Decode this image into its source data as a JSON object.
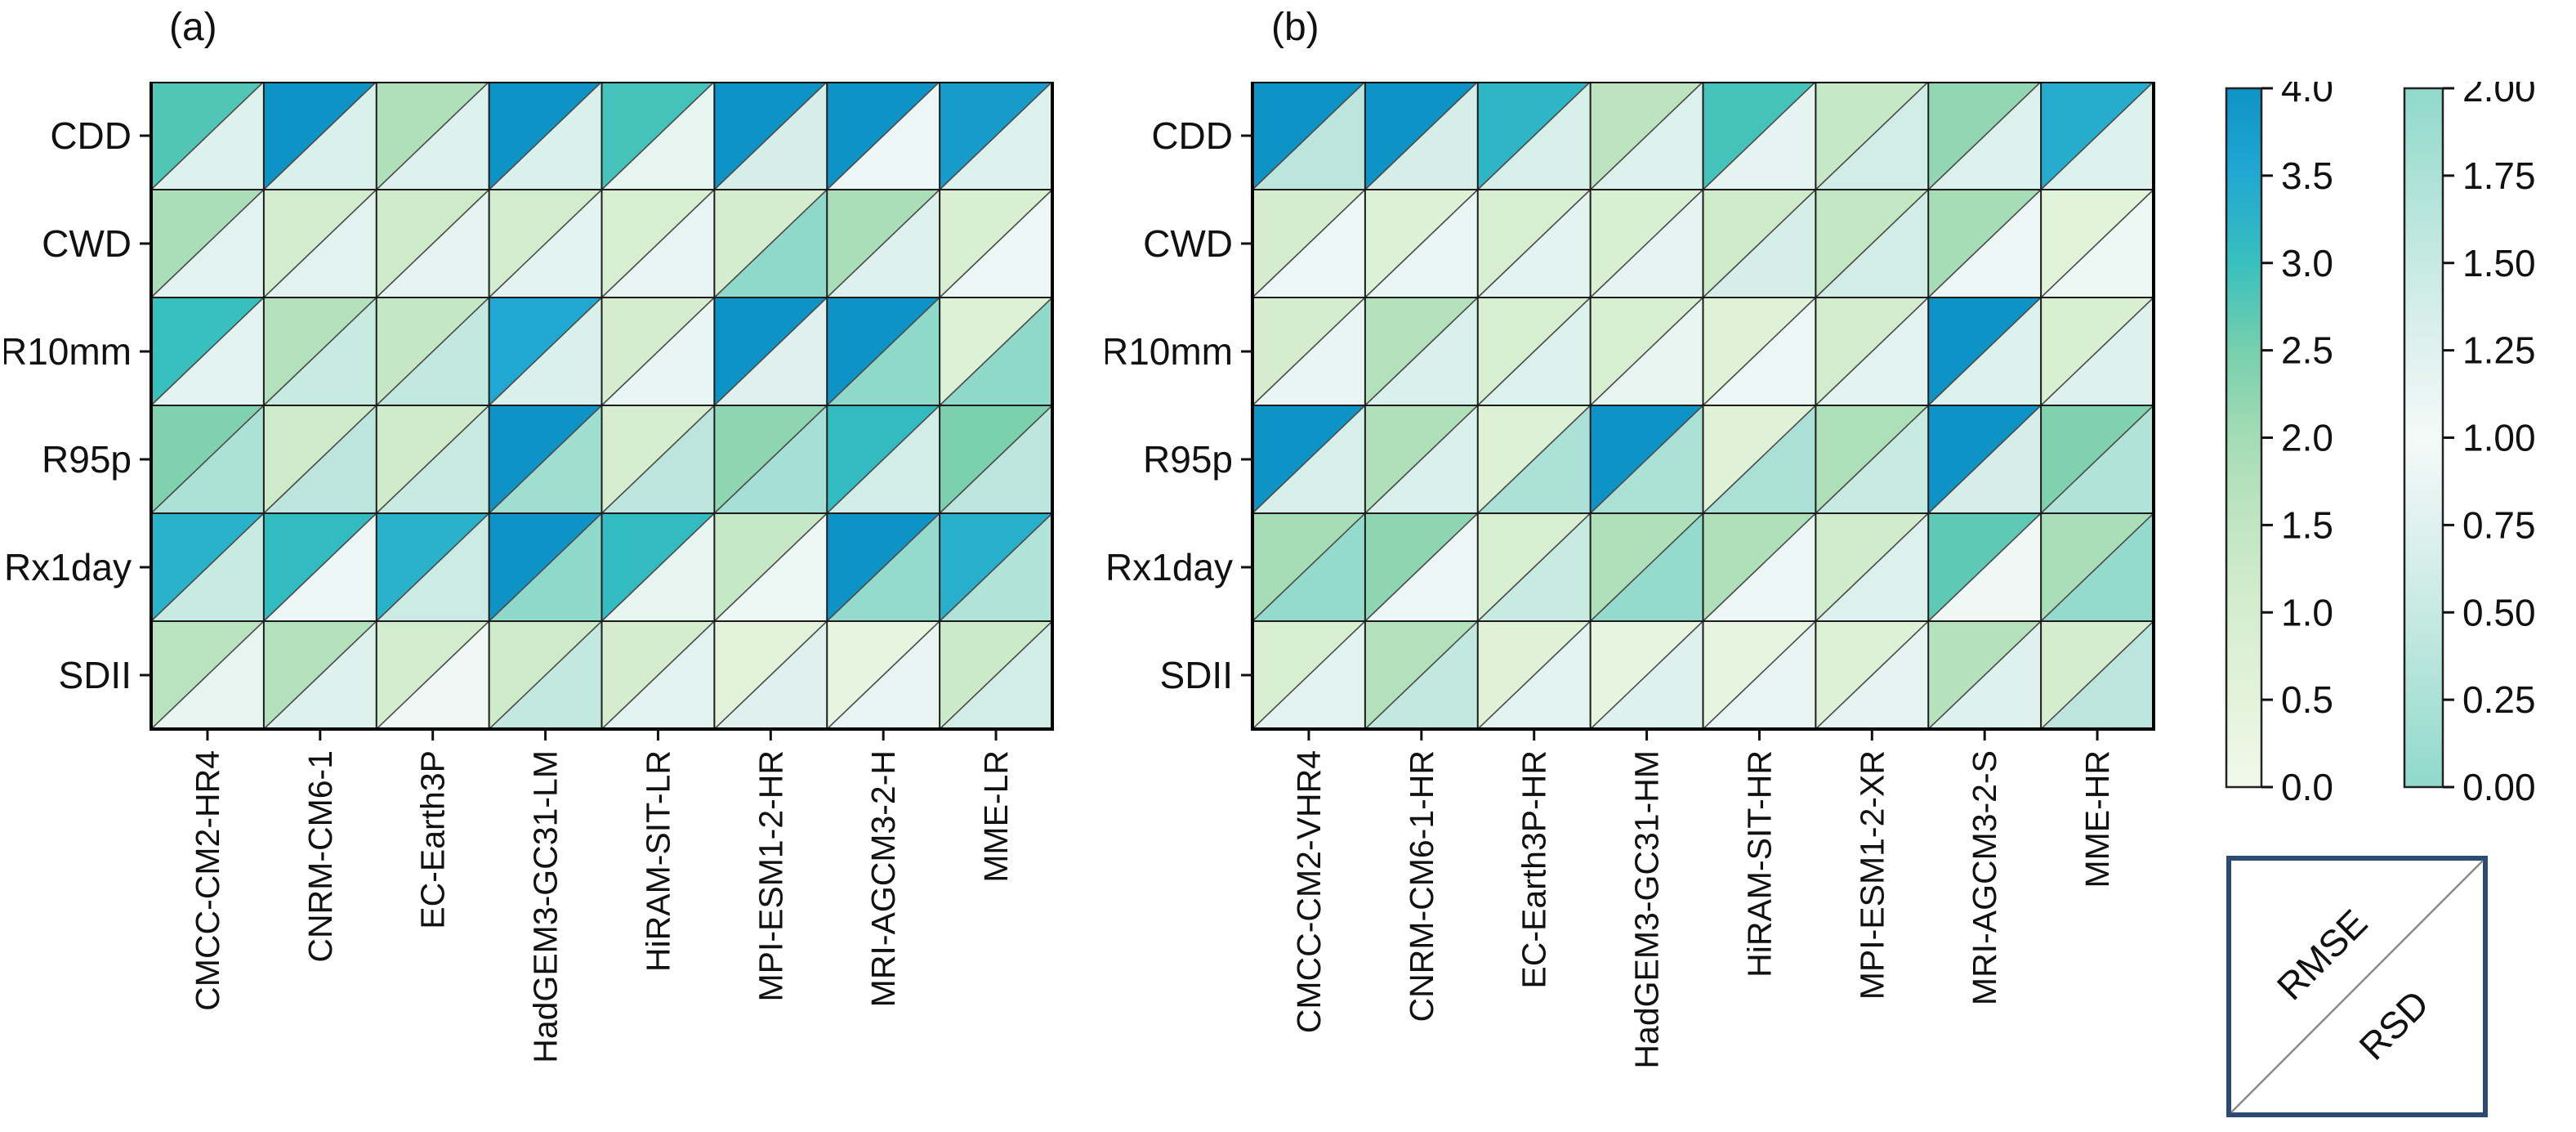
{
  "chart_data": {
    "type": "heatmap",
    "subtype": "split-triangle-heatmap",
    "rows": [
      "CDD",
      "CWD",
      "R10mm",
      "R95p",
      "Rx1day",
      "SDII"
    ],
    "legend": {
      "upper_triangle": "RMSE",
      "lower_triangle": "RSD"
    },
    "layout": {
      "grid": "6x8",
      "panels_count": 2,
      "colorbars_position": "right",
      "legend_position": "bottom-right"
    },
    "colormap_rmse": {
      "range": [
        0,
        4
      ],
      "stops": [
        [
          0,
          "#F1F9EB"
        ],
        [
          0.5,
          "#E3F3DB"
        ],
        [
          1,
          "#D5EDCE"
        ],
        [
          1.5,
          "#C1E6C2"
        ],
        [
          2,
          "#A4DCB5"
        ],
        [
          2.5,
          "#77CFAD"
        ],
        [
          3,
          "#38C0BE"
        ],
        [
          3.5,
          "#21A8D2"
        ],
        [
          4,
          "#0E93C6"
        ]
      ]
    },
    "colormap_rsd": {
      "range": [
        0,
        2
      ],
      "center": 1,
      "stops_deviation": [
        [
          0,
          "#F4FAF8"
        ],
        [
          0.25,
          "#DFF1ED"
        ],
        [
          0.5,
          "#C7EAE1"
        ],
        [
          0.75,
          "#ACE1D7"
        ],
        [
          1,
          "#8FD9CB"
        ]
      ]
    },
    "colorbar_rmse_ticks": [
      "4.0",
      "3.5",
      "3.0",
      "2.5",
      "2.0",
      "1.5",
      "1.0",
      "0.5",
      "0.0"
    ],
    "colorbar_rsd_ticks": [
      "2.00",
      "1.75",
      "1.50",
      "1.25",
      "1.00",
      "0.75",
      "0.50",
      "0.25",
      "0.00"
    ],
    "panels": [
      {
        "label": "(a)",
        "models": [
          "CMCC-CM2-HR4",
          "CNRM-CM6-1",
          "EC-Earth3P",
          "HadGEM3-GC31-LM",
          "HiRAM-SIT-LR",
          "MPI-ESM1-2-HR",
          "MRI-AGCM3-2-H",
          "MME-LR"
        ],
        "rmse": [
          [
            2.8,
            4.0,
            1.8,
            4.0,
            2.9,
            4.0,
            4.0,
            3.8
          ],
          [
            1.9,
            1.05,
            1.2,
            1.05,
            0.9,
            1.0,
            1.9,
            0.85
          ],
          [
            3.0,
            1.75,
            1.4,
            3.5,
            1.0,
            4.0,
            4.0,
            0.7
          ],
          [
            2.4,
            1.2,
            1.15,
            4.0,
            0.95,
            2.25,
            3.1,
            2.45
          ],
          [
            3.3,
            3.1,
            3.3,
            4.0,
            3.1,
            1.35,
            4.0,
            3.35
          ],
          [
            1.65,
            1.75,
            1.05,
            1.2,
            1.0,
            0.55,
            0.35,
            1.25
          ]
        ],
        "rsd": [
          [
            0.75,
            0.7,
            0.75,
            0.7,
            0.85,
            0.65,
            0.9,
            0.72
          ],
          [
            0.78,
            0.78,
            0.82,
            0.8,
            0.84,
            2.0,
            0.75,
            0.9
          ],
          [
            0.8,
            1.5,
            1.55,
            0.7,
            0.86,
            0.76,
            2.0,
            2.0
          ],
          [
            1.75,
            1.6,
            1.5,
            1.85,
            1.6,
            1.8,
            1.4,
            1.6
          ],
          [
            1.5,
            0.9,
            1.45,
            2.0,
            0.85,
            0.92,
            1.95,
            1.7
          ],
          [
            0.85,
            0.75,
            0.94,
            1.55,
            0.78,
            0.76,
            0.84,
            1.4
          ]
        ]
      },
      {
        "label": "(b)",
        "models": [
          "CMCC-CM2-VHR4",
          "CNRM-CM6-1-HR",
          "EC-Earth3P-HR",
          "HadGEM3-GC31-HM",
          "HiRAM-SIT-HR",
          "MPI-ESM1-2-XR",
          "MRI-AGCM3-2-S",
          "MME-HR"
        ],
        "rmse": [
          [
            4.0,
            4.0,
            3.2,
            1.6,
            2.9,
            1.35,
            2.2,
            3.4
          ],
          [
            1.0,
            0.7,
            0.9,
            0.85,
            1.2,
            1.45,
            1.95,
            0.6
          ],
          [
            1.0,
            1.75,
            0.9,
            0.9,
            0.65,
            1.05,
            4.0,
            0.85
          ],
          [
            4.0,
            1.8,
            0.7,
            4.0,
            0.65,
            1.85,
            4.0,
            2.4
          ],
          [
            1.95,
            2.25,
            0.9,
            1.8,
            1.8,
            1.1,
            2.7,
            1.9
          ],
          [
            0.9,
            1.75,
            0.65,
            0.35,
            0.35,
            0.7,
            1.7,
            1.0
          ]
        ],
        "rsd": [
          [
            1.6,
            0.65,
            0.67,
            0.72,
            0.82,
            1.4,
            0.72,
            0.72
          ],
          [
            0.9,
            0.88,
            0.8,
            0.82,
            0.65,
            1.4,
            0.9,
            0.92
          ],
          [
            0.86,
            0.7,
            0.72,
            0.85,
            0.9,
            0.8,
            0.72,
            1.25
          ],
          [
            0.67,
            1.3,
            1.75,
            1.77,
            1.77,
            1.5,
            1.35,
            1.7
          ],
          [
            1.95,
            0.9,
            1.5,
            1.95,
            0.9,
            0.72,
            0.94,
            1.95
          ],
          [
            0.8,
            1.55,
            0.8,
            0.75,
            0.84,
            0.82,
            0.75,
            1.6
          ]
        ]
      }
    ],
    "style_colors": {
      "cell_border": "#1c1c1c",
      "outer_border": "#000000",
      "diagonal_line": "#4a4a4a",
      "colorbar_border": "#222222",
      "legend_border": "#2C4B73",
      "legend_diagonal": "#8a8a8a",
      "text": "#111111"
    }
  }
}
